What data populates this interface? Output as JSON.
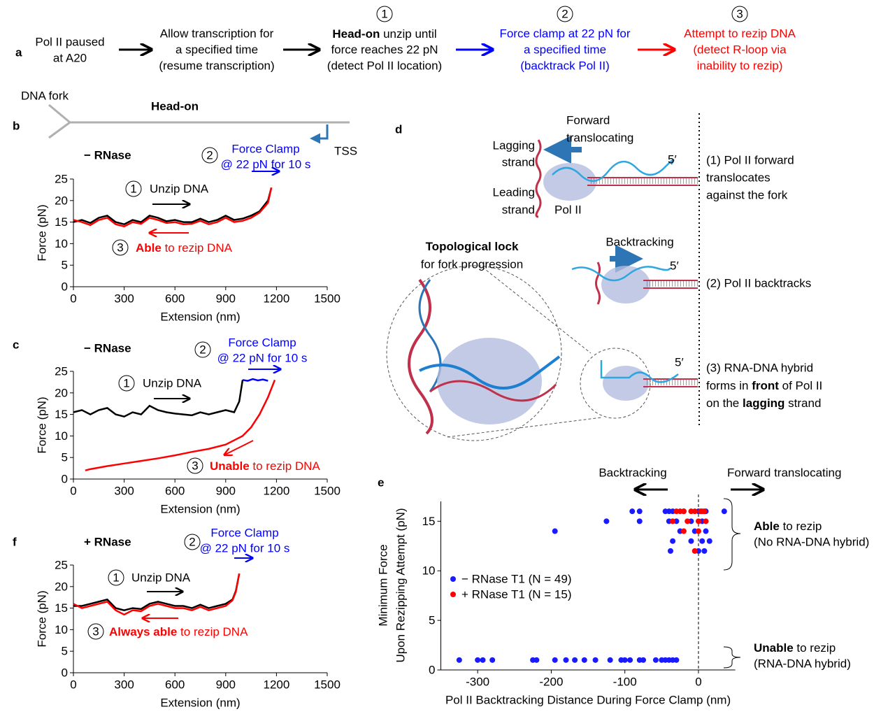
{
  "panel_labels": [
    "a",
    "b",
    "c",
    "d",
    "e",
    "f"
  ],
  "flow": {
    "steps": [
      {
        "color": "#000000",
        "lines": [
          "Pol II paused",
          "at A20"
        ]
      },
      {
        "color": "#000000",
        "lines": [
          "Allow transcription for",
          "a specified time",
          "(resume transcription)"
        ]
      },
      {
        "number": "1",
        "color": "#000000",
        "lines": [
          [
            {
              "text": "Head-on",
              "bold": true
            },
            {
              "text": " unzip until"
            }
          ],
          "force reaches 22 pN",
          "(detect Pol II location)"
        ]
      },
      {
        "number": "2",
        "color": "#0000ff",
        "lines": [
          "Force clamp at 22 pN for",
          "a specified time",
          "(backtrack Pol II)"
        ]
      },
      {
        "number": "3",
        "color": "#ff0000",
        "lines": [
          "Attempt to rezip DNA",
          "(detect R-loop via",
          "inability to rezip)"
        ]
      }
    ]
  },
  "fork_diagram": {
    "fork": "DNA fork",
    "orientation": "Head-on",
    "tss": "TSS"
  },
  "diagram": {
    "forward": [
      "Forward",
      "translocating"
    ],
    "lagging": [
      "Lagging",
      "strand"
    ],
    "leading": [
      "Leading",
      "strand"
    ],
    "pol": "Pol II",
    "five_prime": "5′",
    "state1": [
      "(1) Pol II forward",
      "translocates",
      "against the fork"
    ],
    "backtracking": "Backtracking",
    "state2": [
      "(2) Pol II backtracks"
    ],
    "lock": [
      [
        {
          "text": "Topological lock",
          "bold": true
        }
      ],
      "for fork progression"
    ],
    "state3": [
      "(3) RNA-DNA hybrid",
      [
        {
          "text": "forms in "
        },
        {
          "text": "front",
          "bold": true
        },
        {
          "text": " of Pol II"
        }
      ],
      [
        {
          "text": "on the "
        },
        {
          "text": "lagging",
          "bold": true
        },
        {
          "text": "  strand"
        }
      ]
    ]
  },
  "chart_data": [
    {
      "type": "line",
      "title": "− RNase",
      "xlabel": "Extension (nm)",
      "ylabel": "Force (pN)",
      "xlim": [
        0,
        1500
      ],
      "ylim": [
        0,
        25
      ],
      "xticks": [
        0,
        300,
        600,
        900,
        1200,
        1500
      ],
      "yticks": [
        0,
        5,
        10,
        15,
        20,
        25
      ],
      "series": [
        {
          "color": "#000000",
          "x": [
            0,
            50,
            100,
            150,
            200,
            250,
            300,
            350,
            400,
            450,
            500,
            550,
            600,
            650,
            700,
            750,
            800,
            850,
            900,
            950,
            1000,
            1050,
            1100,
            1150,
            1170
          ],
          "values": [
            15,
            15.5,
            14.8,
            16,
            16.5,
            15,
            14.5,
            15.5,
            15,
            16.5,
            16,
            15.2,
            15.5,
            15,
            15,
            15.8,
            15,
            15.5,
            16.5,
            15.5,
            15.8,
            16.5,
            17.5,
            20,
            23
          ]
        },
        {
          "color": "#ff0000",
          "x": [
            0,
            50,
            100,
            150,
            200,
            250,
            300,
            350,
            400,
            450,
            500,
            550,
            600,
            650,
            700,
            750,
            800,
            850,
            900,
            950,
            1000,
            1050,
            1100,
            1150,
            1170
          ],
          "values": [
            15.5,
            15,
            14.3,
            15.5,
            16,
            14.5,
            14,
            15,
            14.6,
            16,
            15.5,
            14.8,
            15,
            14.5,
            14.6,
            15.3,
            14.5,
            15,
            16,
            15,
            15.3,
            16,
            17.2,
            19.5,
            23
          ]
        }
      ],
      "annotations": [
        {
          "number": "1",
          "color": "#000000",
          "lines": [
            "Unzip DNA"
          ]
        },
        {
          "number": "2",
          "color": "#0000ff",
          "lines": [
            "Force Clamp",
            "@ 22 pN for 10 s"
          ]
        },
        {
          "number": "3",
          "color": "#ff0000",
          "lines": [
            [
              {
                "text": "Able",
                "bold": true
              },
              {
                "text": " to rezip DNA"
              }
            ]
          ]
        }
      ]
    },
    {
      "type": "line",
      "title": "− RNase",
      "xlabel": "Extension (nm)",
      "ylabel": "Force (pN)",
      "xlim": [
        0,
        1500
      ],
      "ylim": [
        0,
        25
      ],
      "xticks": [
        0,
        300,
        600,
        900,
        1200,
        1500
      ],
      "yticks": [
        0,
        5,
        10,
        15,
        20,
        25
      ],
      "series": [
        {
          "color": "#000000",
          "x": [
            0,
            50,
            100,
            150,
            200,
            250,
            300,
            350,
            400,
            450,
            500,
            550,
            600,
            650,
            700,
            750,
            800,
            850,
            900,
            950,
            980,
            1000
          ],
          "values": [
            15.5,
            16,
            15,
            16,
            16.5,
            15,
            14.5,
            15.5,
            15,
            17,
            16,
            15.5,
            15.2,
            15,
            14.8,
            15.5,
            15,
            15.5,
            16,
            15.5,
            18,
            23
          ]
        },
        {
          "color": "#0000ff",
          "x": [
            1000,
            1030,
            1060,
            1090,
            1120,
            1150
          ],
          "values": [
            23,
            22.8,
            23.2,
            22.9,
            23.1,
            22.8
          ]
        },
        {
          "color": "#ff0000",
          "x": [
            1190,
            1150,
            1100,
            1050,
            1000,
            950,
            900,
            800,
            700,
            600,
            500,
            400,
            300,
            200,
            100,
            70
          ],
          "values": [
            23,
            19,
            15,
            12,
            10,
            9,
            8,
            7,
            6.3,
            5.5,
            4.8,
            4.2,
            3.6,
            3,
            2.3,
            2
          ]
        }
      ],
      "annotations": [
        {
          "number": "1",
          "color": "#000000",
          "lines": [
            "Unzip DNA"
          ]
        },
        {
          "number": "2",
          "color": "#0000ff",
          "lines": [
            "Force Clamp",
            "@ 22 pN for 10 s"
          ]
        },
        {
          "number": "3",
          "color": "#ff0000",
          "lines": [
            [
              {
                "text": "Unable",
                "bold": true
              },
              {
                "text": " to rezip DNA"
              }
            ]
          ]
        }
      ]
    },
    {
      "type": "line",
      "title": "+ RNase",
      "xlabel": "Extension (nm)",
      "ylabel": "Force (pN)",
      "xlim": [
        0,
        1500
      ],
      "ylim": [
        0,
        25
      ],
      "xticks": [
        0,
        300,
        600,
        900,
        1200,
        1500
      ],
      "yticks": [
        0,
        5,
        10,
        15,
        20,
        25
      ],
      "series": [
        {
          "color": "#000000",
          "x": [
            0,
            50,
            100,
            150,
            200,
            250,
            300,
            350,
            400,
            450,
            500,
            550,
            600,
            650,
            700,
            750,
            800,
            850,
            900,
            940,
            960,
            980
          ],
          "values": [
            15.5,
            15.5,
            16,
            16.5,
            17,
            15,
            14.5,
            15,
            14.8,
            16,
            16.5,
            16,
            15.5,
            15.5,
            15,
            15.8,
            15,
            15.5,
            16,
            17,
            19,
            23
          ]
        },
        {
          "color": "#ff0000",
          "x": [
            0,
            50,
            100,
            150,
            200,
            250,
            300,
            350,
            400,
            450,
            500,
            550,
            600,
            650,
            700,
            750,
            800,
            850,
            900,
            940,
            960,
            980
          ],
          "values": [
            16,
            15,
            15.5,
            16,
            16.5,
            14.5,
            13.5,
            14.5,
            14.3,
            15.5,
            16,
            15.5,
            15,
            15,
            14.5,
            15.3,
            14.5,
            15,
            15.5,
            16.8,
            18.8,
            23
          ]
        }
      ],
      "annotations": [
        {
          "number": "1",
          "color": "#000000",
          "lines": [
            "Unzip DNA"
          ]
        },
        {
          "number": "2",
          "color": "#0000ff",
          "lines": [
            "Force Clamp",
            "@ 22 pN for 10 s"
          ]
        },
        {
          "number": "3",
          "color": "#ff0000",
          "lines": [
            [
              {
                "text": "Always able",
                "bold": true
              },
              {
                "text": " to rezip DNA"
              }
            ]
          ]
        }
      ]
    },
    {
      "type": "scatter",
      "xlabel": "Pol II Backtracking Distance During Force Clamp (nm)",
      "ylabel": [
        "Minimum Force",
        "Upon Rezipping Attempt (pN)"
      ],
      "xlim": [
        -350,
        50
      ],
      "ylim": [
        0,
        17
      ],
      "xticks": [
        -300,
        -200,
        -100,
        0
      ],
      "yticks": [
        0,
        5,
        10,
        15
      ],
      "vline": 0,
      "series": [
        {
          "name": "− RNase T1 (N = 49)",
          "color": "#1a1aff",
          "x": [
            -325,
            -300,
            -293,
            -280,
            -225,
            -220,
            -195,
            -180,
            -168,
            -155,
            -140,
            -120,
            -105,
            -100,
            -93,
            -80,
            -75,
            -58,
            -50,
            -45,
            -40,
            -35,
            -30,
            -195,
            -125,
            -90,
            -80,
            -80,
            -45,
            -40,
            -35,
            -38,
            -35,
            -25,
            -20,
            -10,
            -5,
            0,
            0,
            5,
            8,
            10,
            10,
            15,
            35,
            -40,
            -10,
            5,
            -30
          ],
          "values": [
            1,
            1,
            1,
            1,
            1,
            1,
            1,
            1,
            1,
            1,
            1,
            1,
            1,
            1,
            1,
            1,
            1,
            1,
            1,
            1,
            1,
            1,
            1,
            14,
            15,
            16,
            16,
            15,
            16,
            16,
            16,
            12,
            13,
            14,
            16,
            13,
            14,
            16,
            12,
            15,
            12,
            16,
            14,
            13,
            16,
            15,
            15,
            13,
            15
          ]
        },
        {
          "name": "+ RNase T1 (N = 15)",
          "color": "#ff0000",
          "x": [
            -35,
            -30,
            -25,
            -20,
            -15,
            -10,
            -5,
            0,
            5,
            8,
            -5,
            0,
            10,
            -20,
            3
          ],
          "values": [
            15,
            16,
            16,
            14,
            15,
            16,
            16,
            15,
            16,
            16,
            12,
            14,
            15,
            16,
            16
          ]
        }
      ],
      "annotations": [
        "Backtracking",
        "Forward translocating"
      ],
      "brackets": [
        {
          "lines": [
            [
              {
                "text": "Able",
                "bold": true
              },
              {
                "text": " to rezip"
              }
            ],
            "(No RNA-DNA hybrid)"
          ]
        },
        {
          "lines": [
            [
              {
                "text": "Unable",
                "bold": true
              },
              {
                "text": " to rezip"
              }
            ],
            "(RNA-DNA hybrid)"
          ]
        }
      ]
    }
  ]
}
